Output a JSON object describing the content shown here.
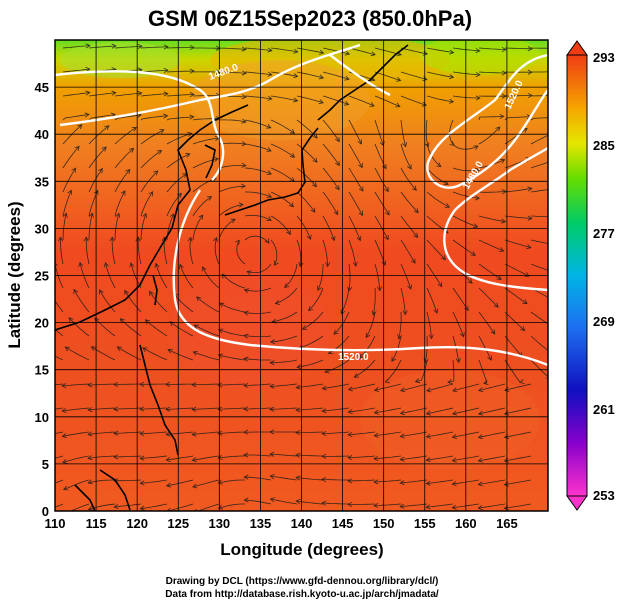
{
  "title": "GSM 06Z15Sep2023 (850.0hPa)",
  "xlabel": "Longitude (degrees)",
  "ylabel": "Latitude (degrees)",
  "credit_line1": "Drawing by DCL (https://www.gfd-dennou.org/library/dcl/)",
  "credit_line2": "Data from http://database.rish.kyoto-u.ac.jp/arch/jmadata/",
  "colors": {
    "land_outline": "#000000",
    "contour": "#ffffff",
    "streamline": "#1a1a1a"
  },
  "map": {
    "lon_range": [
      110,
      170
    ],
    "lat_range": [
      0,
      50
    ],
    "x_ticks": [
      "110",
      "115",
      "120",
      "125",
      "130",
      "135",
      "140",
      "145",
      "150",
      "155",
      "160",
      "165"
    ],
    "y_ticks": [
      "0",
      "5",
      "10",
      "15",
      "20",
      "25",
      "30",
      "35",
      "40",
      "45"
    ],
    "grid": true,
    "contour_labels": [
      "1520.0",
      "1480.0",
      "1520.0",
      "1480.0"
    ]
  },
  "colorbar": {
    "ticks": [
      "293",
      "285",
      "277",
      "269",
      "261",
      "253"
    ],
    "min": 253,
    "max": 293
  }
}
